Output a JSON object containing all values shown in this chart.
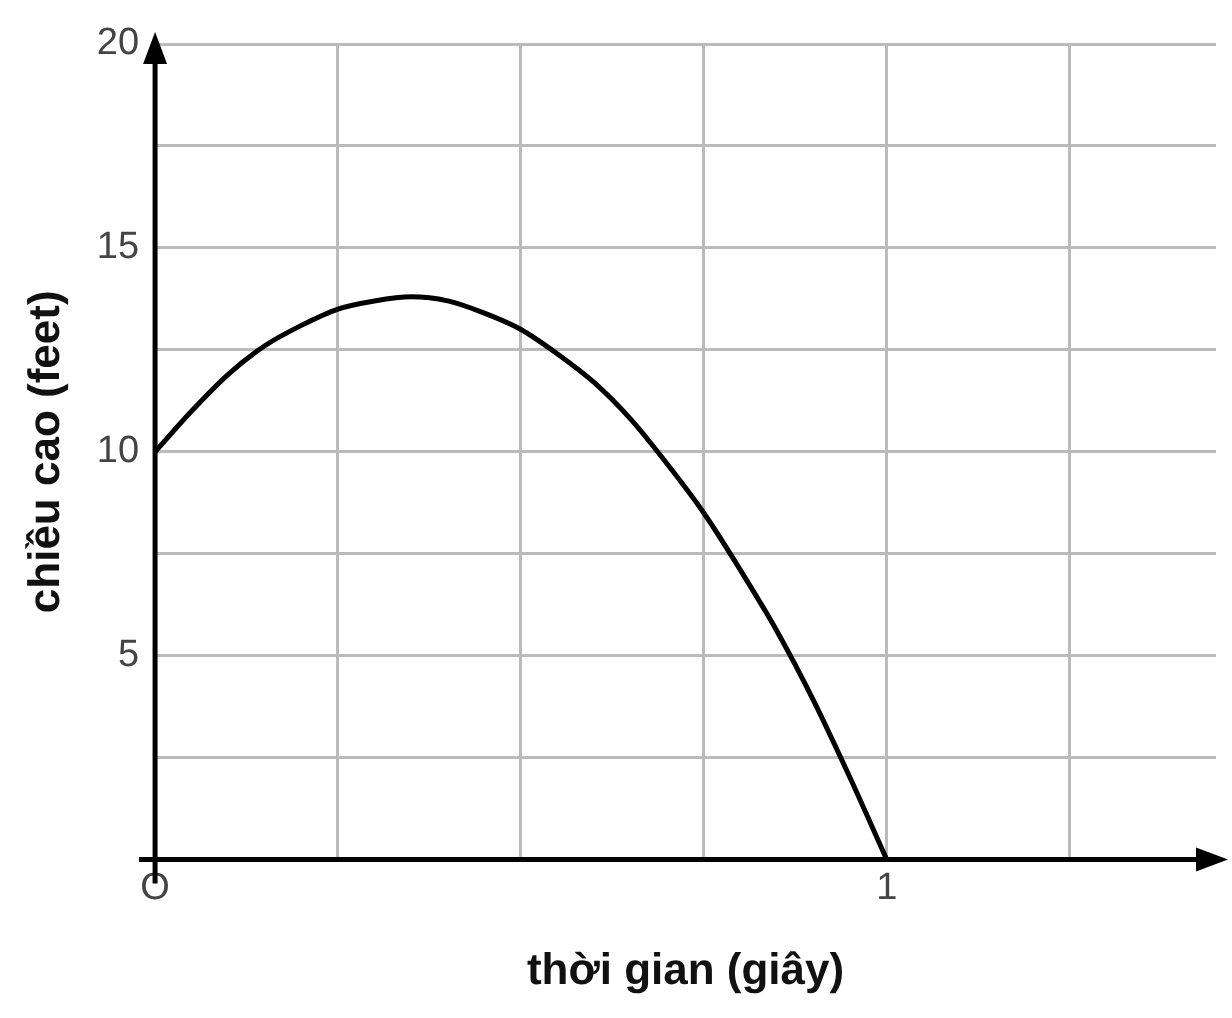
{
  "chart_data": {
    "type": "line",
    "xlabel": "thời gian (giây)",
    "ylabel": "chiều cao (feet)",
    "categories": [
      "O",
      null,
      null,
      null,
      null,
      null,
      null,
      null,
      null,
      null,
      null,
      null,
      null,
      null,
      null,
      null,
      null,
      null,
      null,
      null,
      "1",
      null,
      null,
      null,
      null,
      null,
      null,
      null,
      null,
      null
    ],
    "series": [
      {
        "color": "#000000",
        "values": [
          10,
          11,
          11.9,
          12.6,
          13.1,
          13.5,
          13.7,
          13.8,
          13.7,
          13.4,
          13,
          12.4,
          11.7,
          10.8,
          9.7,
          8.5,
          7.1,
          5.6,
          3.9,
          2,
          0,
          null,
          null,
          null,
          null,
          null,
          null,
          null,
          null,
          null
        ]
      }
    ],
    "ylim": [
      0,
      20
    ],
    "yticks": [
      {
        "value": 0,
        "label": null
      },
      {
        "value": 2.5,
        "label": null
      },
      5,
      {
        "value": 7.5,
        "label": null
      },
      10,
      {
        "value": 12.5,
        "label": null
      },
      15,
      {
        "value": 17.5,
        "label": null
      },
      20
    ],
    "grid": true,
    "legend": false,
    "marker": "none",
    "line_style": "solid"
  }
}
